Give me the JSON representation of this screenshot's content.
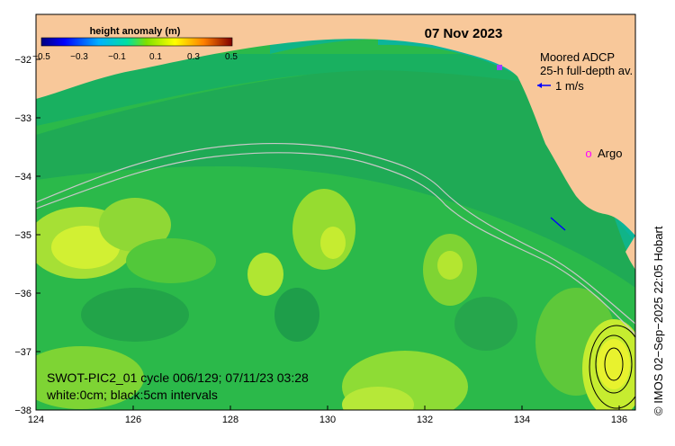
{
  "map": {
    "date": "07 Nov 2023",
    "colorbar": {
      "title": "height anomaly (m)",
      "ticks": [
        "−0.5",
        "−0.3",
        "−0.1",
        "0.1",
        "0.3",
        "0.5"
      ]
    },
    "x_ticks": [
      "124",
      "126",
      "128",
      "130",
      "132",
      "134",
      "136"
    ],
    "y_ticks": [
      "−32",
      "−33",
      "−34",
      "−35",
      "−36",
      "−37",
      "−38"
    ],
    "legend": {
      "adcp_title": "Moored ADCP",
      "adcp_subtitle": "25-h full-depth av.",
      "scale_label": "1 m/s",
      "argo_marker": "o",
      "argo_label": "Argo"
    },
    "caption": {
      "line1": "SWOT-PIC2_01 cycle 006/129; 07/11/23 03:28",
      "line2": "white:0cm; black:5cm intervals"
    },
    "credit": "© IMOS 02−Sep−2025 22:05 Hobart",
    "colors": {
      "land": "#f8c89a",
      "ocean_base": "#2bb94a",
      "frame": "#000000",
      "argo": "#ff00ff",
      "vector": "#0000ff"
    }
  }
}
